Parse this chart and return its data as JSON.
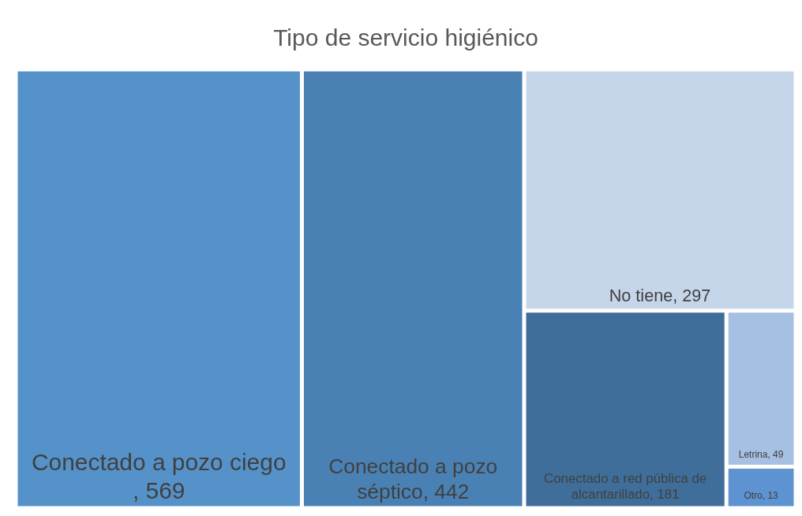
{
  "chart_data": {
    "type": "other",
    "title": "Tipo de servicio higiénico",
    "categories": [
      "Conectado a pozo ciego",
      "Conectado a pozo séptico",
      "No tiene",
      "Conectado a red pública de alcantarillado",
      "Letrina",
      "Otro"
    ],
    "values": [
      569,
      442,
      297,
      181,
      49,
      13
    ],
    "colors": [
      "#5592ca",
      "#4a81b4",
      "#c5d5ea",
      "#3f6e9a",
      "#a5c0e3",
      "#5d93d0"
    ],
    "value_labels": [
      ", 569",
      ", 442",
      ", 297",
      ", 181",
      ", 49",
      ", 13"
    ]
  }
}
